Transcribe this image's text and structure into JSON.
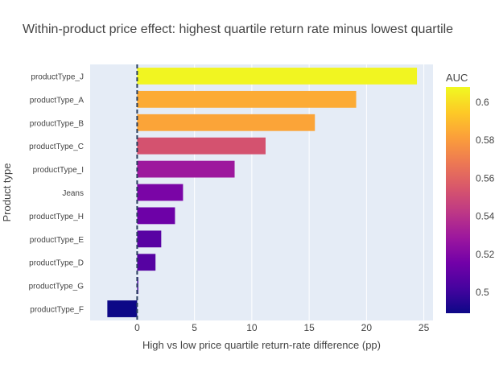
{
  "chart_data": {
    "type": "bar",
    "orientation": "horizontal",
    "title": "Within-product price effect: highest quartile return rate minus lowest quartile",
    "xlabel": "High vs low price quartile return-rate difference (pp)",
    "ylabel": "Product type",
    "xlim": [
      -4.1,
      25.8
    ],
    "xticks": [
      0,
      5,
      10,
      15,
      20,
      25
    ],
    "grid": true,
    "zero_line": "dashed",
    "colorbar": {
      "title": "AUC",
      "range": [
        0.489,
        0.608
      ],
      "ticks": [
        0.5,
        0.52,
        0.54,
        0.56,
        0.58,
        0.6
      ],
      "colorscale": "plasma"
    },
    "categories": [
      "productType_J",
      "productType_A",
      "productType_B",
      "productType_C",
      "productType_I",
      "Jeans",
      "productType_H",
      "productType_E",
      "productType_D",
      "productType_G",
      "productType_F"
    ],
    "values": [
      24.4,
      19.1,
      15.5,
      11.2,
      8.5,
      4.0,
      3.3,
      2.1,
      1.6,
      0.1,
      -2.6
    ],
    "auc": [
      0.607,
      0.585,
      0.583,
      0.553,
      0.529,
      0.518,
      0.514,
      0.508,
      0.507,
      0.502,
      0.489
    ]
  }
}
